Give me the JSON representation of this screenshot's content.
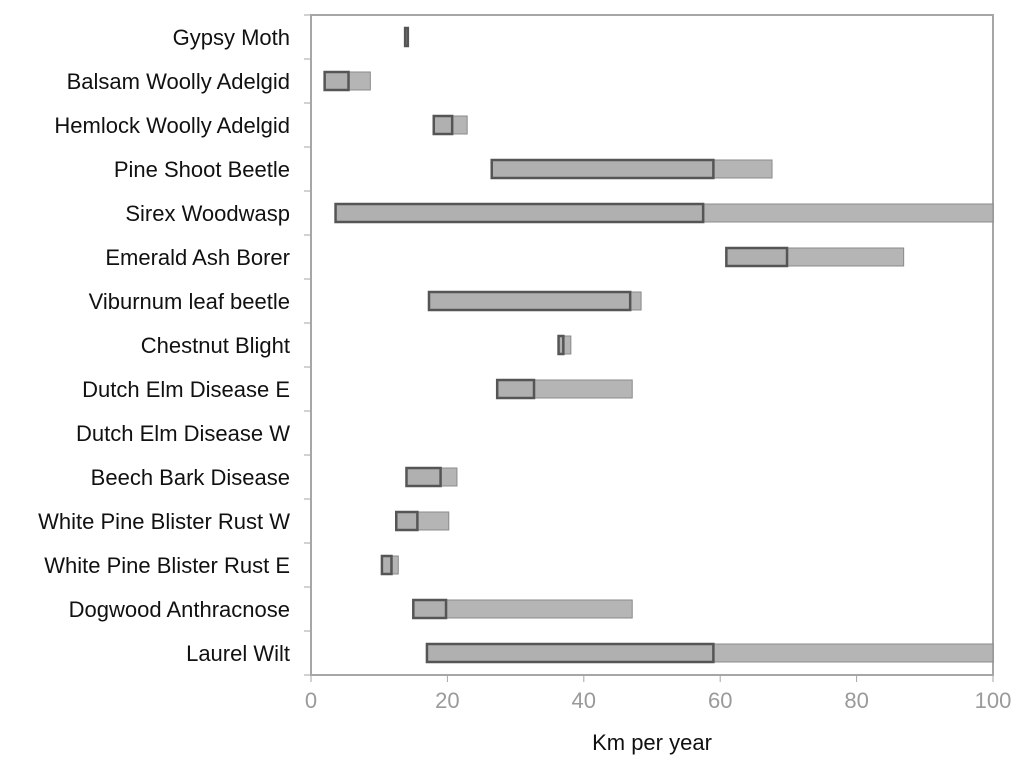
{
  "chart_data": {
    "type": "bar",
    "orientation": "horizontal",
    "xlabel": "Km per year",
    "ylabel": "",
    "title": "",
    "xlim": [
      0,
      100
    ],
    "xticks": [
      "0",
      "20",
      "40",
      "60",
      "80",
      "100"
    ],
    "grid": false,
    "categories": [
      "Gypsy Moth",
      "Balsam Woolly Adelgid",
      "Hemlock Woolly Adelgid",
      "Pine Shoot Beetle",
      "Sirex Woodwasp",
      "Emerald Ash Borer",
      "Viburnum leaf beetle",
      "Chestnut Blight",
      "Dutch Elm Disease E",
      "Dutch Elm Disease W",
      "Beech Bark Disease",
      "White Pine Blister Rust W",
      "White Pine Blister Rust E",
      "Dogwood Anthracnose",
      "Laurel Wilt"
    ],
    "series": [
      {
        "values": [
          [
            13.8,
            14.2
          ],
          [
            2,
            5.5
          ],
          [
            18,
            20.7
          ],
          [
            26.5,
            59
          ],
          [
            3.6,
            57.5
          ],
          [
            60.9,
            69.8
          ],
          [
            17.3,
            46.8
          ],
          [
            36.3,
            37
          ],
          [
            27.3,
            32.7
          ],
          null,
          [
            14,
            19
          ],
          [
            12.5,
            15.6
          ],
          [
            10.4,
            11.8
          ],
          [
            15,
            19.8
          ],
          [
            17,
            59
          ]
        ]
      },
      {
        "values": [
          [
            13.8,
            14.2
          ],
          [
            2,
            8.7
          ],
          [
            18,
            22.9
          ],
          [
            26.5,
            67.6
          ],
          [
            3.6,
            100
          ],
          [
            60.9,
            86.9
          ],
          [
            17.3,
            48.4
          ],
          [
            36.3,
            38.1
          ],
          [
            27.3,
            47.1
          ],
          null,
          [
            14,
            21.4
          ],
          [
            12.5,
            20.2
          ],
          [
            10.4,
            12.8
          ],
          [
            15,
            47.1
          ],
          [
            17,
            100
          ]
        ]
      }
    ],
    "colors": {
      "inner_fill": "#b0b0b0",
      "inner_stroke": "#555555",
      "outer_fill": "#b5b5b5",
      "outer_stroke": "#8a8a8a",
      "frame": "#a6a6a6"
    }
  }
}
